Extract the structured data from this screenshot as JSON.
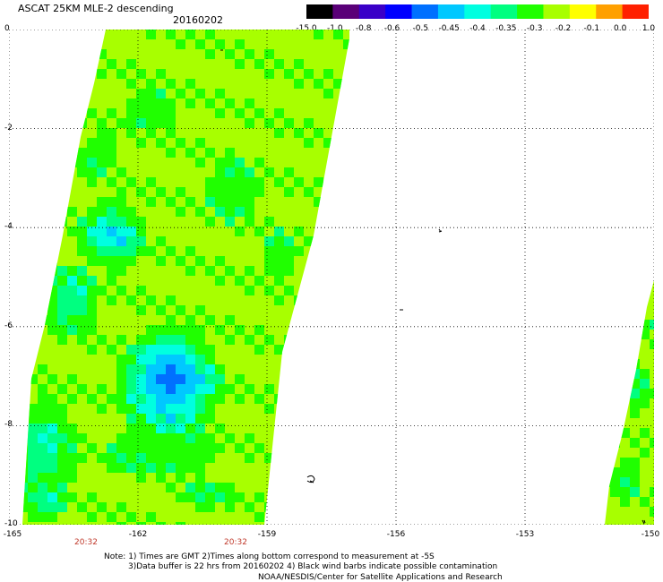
{
  "title": "ASCAT 25KM MLE-2 descending",
  "date": "20160202",
  "colorbar": {
    "labels": [
      "-15.0",
      "-1.0",
      "-0.8",
      "-0.6",
      "-0.5",
      "-0.45",
      "-0.4",
      "-0.35",
      "-0.3",
      "-0.2",
      "-0.1",
      "0.0",
      "1.0"
    ],
    "colors": [
      "#000000",
      "#5a0078",
      "#3a00c8",
      "#0000ff",
      "#0070ff",
      "#00c8ff",
      "#00ffe0",
      "#00ff80",
      "#20ff00",
      "#a8ff00",
      "#ffff00",
      "#ffa000",
      "#ff2000"
    ]
  },
  "axes": {
    "y_ticks": [
      "0",
      "-2",
      "-4",
      "-6",
      "-8",
      "-10"
    ],
    "x_ticks": [
      "-165",
      "-162",
      "-159",
      "-156",
      "-153",
      "-150"
    ],
    "time_labels": [
      "20:32",
      "20:32"
    ]
  },
  "notes": {
    "line1": "Note: 1) Times are GMT 2)Times along bottom correspond to measurement at -5S",
    "line2": "3)Data buffer is 22 hrs from 20160202 4) Black wind barbs indicate possible contamination",
    "line3": "NOAA/NESDIS/Center for Satellite Applications and Research"
  },
  "field": {
    "base_color": "#a8ff00",
    "patch_colors": [
      "#20ff00",
      "#00ff80",
      "#00ffe0",
      "#00c8ff",
      "#0070ff",
      "#0000ff"
    ]
  }
}
